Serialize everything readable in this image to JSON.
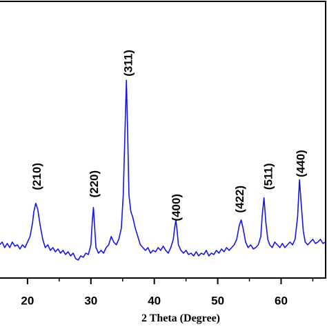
{
  "chart_data": {
    "type": "line",
    "xlabel": "2 Theta (Degree)",
    "xlim": [
      15.66,
      67.24
    ],
    "ylim": [
      0,
      100
    ],
    "xticks": [
      20,
      30,
      40,
      50,
      60
    ],
    "xminorticks": [
      25,
      35,
      45,
      55,
      65
    ],
    "x": [
      15.6,
      16.0,
      16.4,
      16.8,
      17.2,
      17.6,
      18.0,
      18.4,
      18.8,
      19.2,
      19.6,
      20.0,
      20.4,
      20.8,
      21.0,
      21.3,
      21.6,
      22.0,
      22.4,
      22.8,
      23.2,
      23.6,
      24.0,
      24.4,
      24.8,
      25.2,
      25.6,
      26.0,
      26.4,
      26.8,
      27.2,
      27.6,
      28.0,
      28.4,
      28.8,
      29.2,
      29.6,
      30.0,
      30.2,
      30.4,
      30.6,
      30.8,
      31.2,
      31.6,
      32.0,
      32.4,
      32.8,
      33.2,
      33.6,
      34.0,
      34.4,
      34.8,
      35.1,
      35.4,
      35.6,
      35.8,
      36.0,
      36.3,
      36.6,
      37.0,
      37.4,
      37.8,
      38.2,
      38.6,
      39.0,
      39.4,
      39.8,
      40.2,
      40.6,
      41.0,
      41.4,
      41.8,
      42.2,
      42.6,
      43.0,
      43.2,
      43.4,
      43.6,
      43.8,
      44.2,
      44.6,
      45.0,
      45.4,
      45.8,
      46.2,
      46.6,
      47.0,
      47.4,
      47.8,
      48.2,
      48.6,
      49.0,
      49.4,
      49.8,
      50.2,
      50.6,
      51.0,
      51.4,
      51.8,
      52.2,
      52.6,
      53.0,
      53.4,
      53.7,
      54.0,
      54.4,
      54.8,
      55.2,
      55.6,
      56.0,
      56.4,
      56.8,
      57.0,
      57.3,
      57.6,
      57.9,
      58.2,
      58.6,
      59.0,
      59.4,
      59.8,
      60.2,
      60.6,
      61.0,
      61.4,
      61.8,
      62.2,
      62.6,
      62.9,
      63.2,
      63.5,
      63.8,
      64.2,
      64.6,
      65.0,
      65.4,
      65.8,
      66.2,
      66.6,
      67.0
    ],
    "series": [
      {
        "color": "#1414e6",
        "values": [
          12,
          13,
          11,
          12.5,
          11,
          13,
          11.5,
          12,
          10.5,
          12,
          11,
          13,
          15,
          20,
          24,
          27,
          25,
          19,
          14,
          11,
          12,
          10,
          11,
          9.5,
          10.5,
          9,
          10,
          8.5,
          9.5,
          8,
          9,
          7,
          6.5,
          8,
          7.5,
          9,
          8.5,
          12,
          20,
          25.5,
          18,
          11,
          9,
          10,
          9,
          11,
          12,
          15,
          13,
          12,
          14,
          18,
          30,
          55,
          71.5,
          52,
          30,
          24,
          22,
          18,
          15,
          12,
          11,
          10,
          11,
          9,
          10,
          9.5,
          11,
          10,
          11.5,
          10,
          9,
          11,
          14,
          18,
          21,
          17,
          12,
          10,
          9,
          10,
          8.5,
          9,
          8,
          9.5,
          8,
          9,
          8.5,
          10,
          8,
          9,
          8.5,
          10,
          9,
          10.5,
          9.5,
          11,
          10,
          11,
          12,
          14,
          19,
          21,
          18,
          13,
          11,
          12,
          10.5,
          11,
          12,
          15,
          22,
          29,
          20,
          14,
          12,
          11,
          13,
          12,
          11,
          12.5,
          11,
          12,
          13,
          12,
          14,
          22,
          35.5,
          26,
          17,
          13,
          12,
          13,
          14,
          12.5,
          13,
          14,
          12.5,
          13
        ]
      }
    ],
    "annotations": [
      {
        "text": "(210)",
        "x": 21.6,
        "y": 36.7
      },
      {
        "text": "(220)",
        "x": 30.6,
        "y": 34
      },
      {
        "text": "(311)",
        "x": 36.0,
        "y": 77.7
      },
      {
        "text": "(400)",
        "x": 43.6,
        "y": 25.5
      },
      {
        "text": "(422)",
        "x": 53.6,
        "y": 28.5
      },
      {
        "text": "(511)",
        "x": 58.1,
        "y": 36.7
      },
      {
        "text": "(440)",
        "x": 63.2,
        "y": 41.4
      }
    ]
  }
}
